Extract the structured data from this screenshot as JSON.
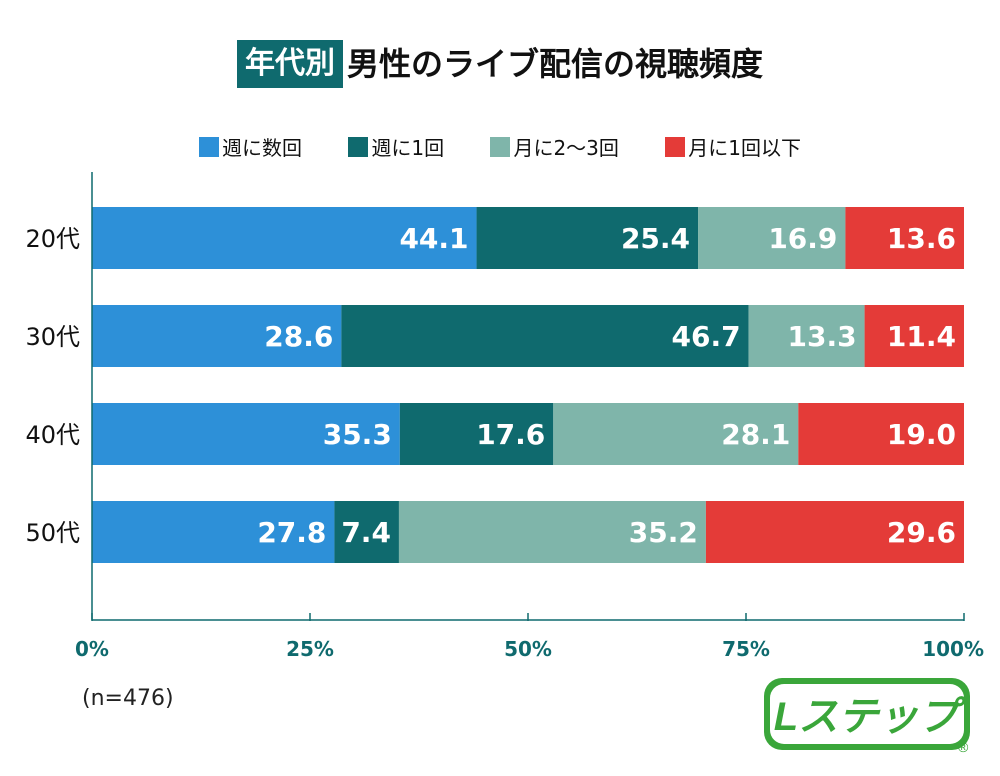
{
  "title": {
    "badge": "年代別",
    "main": "男性のライブ配信の視聴頻度"
  },
  "note": "(n=476)",
  "logo": {
    "text": "Lステップ",
    "mark": "®"
  },
  "colors": {
    "s1": "#2d90d8",
    "s2": "#0f6a6e",
    "s3": "#7fb5aa",
    "s4": "#e43b38",
    "axis": "#0f6a6e"
  },
  "chart_data": {
    "type": "bar",
    "orientation": "horizontal",
    "stacked": true,
    "categories": [
      "20代",
      "30代",
      "40代",
      "50代"
    ],
    "series": [
      {
        "name": "週に数回",
        "values": [
          44.1,
          28.6,
          35.3,
          27.8
        ]
      },
      {
        "name": "週に1回",
        "values": [
          25.4,
          46.7,
          17.6,
          7.4
        ]
      },
      {
        "name": "月に2〜3回",
        "values": [
          16.9,
          13.3,
          28.1,
          35.2
        ]
      },
      {
        "name": "月に1回以下",
        "values": [
          13.6,
          11.4,
          19.0,
          29.6
        ]
      }
    ],
    "xlim": [
      0,
      100
    ],
    "x_ticks": [
      "0%",
      "25%",
      "50%",
      "75%",
      "100%"
    ],
    "legend_position": "top",
    "data_labels": true
  }
}
